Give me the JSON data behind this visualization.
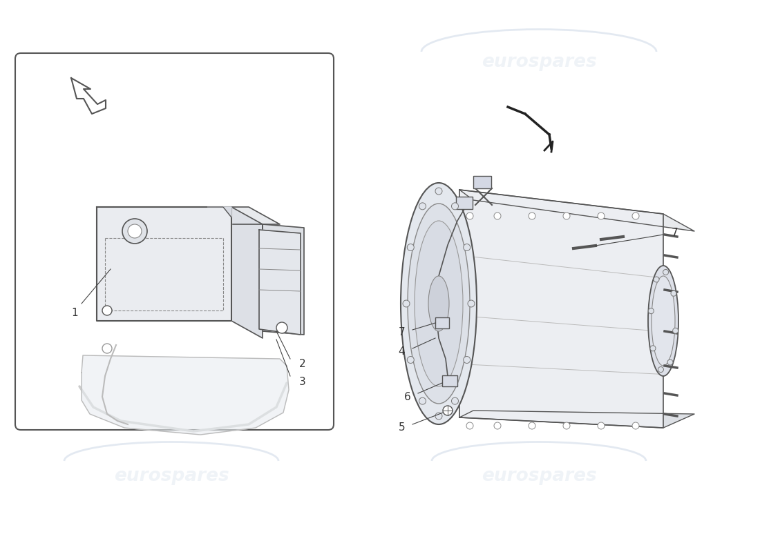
{
  "bg_color": "#ffffff",
  "line_color": "#555555",
  "light_line": "#aaaaaa",
  "watermark_color": "#c8d4e4",
  "watermark_text": "eurospares",
  "part_labels": [
    "1",
    "2",
    "3",
    "4",
    "5",
    "6",
    "7"
  ]
}
